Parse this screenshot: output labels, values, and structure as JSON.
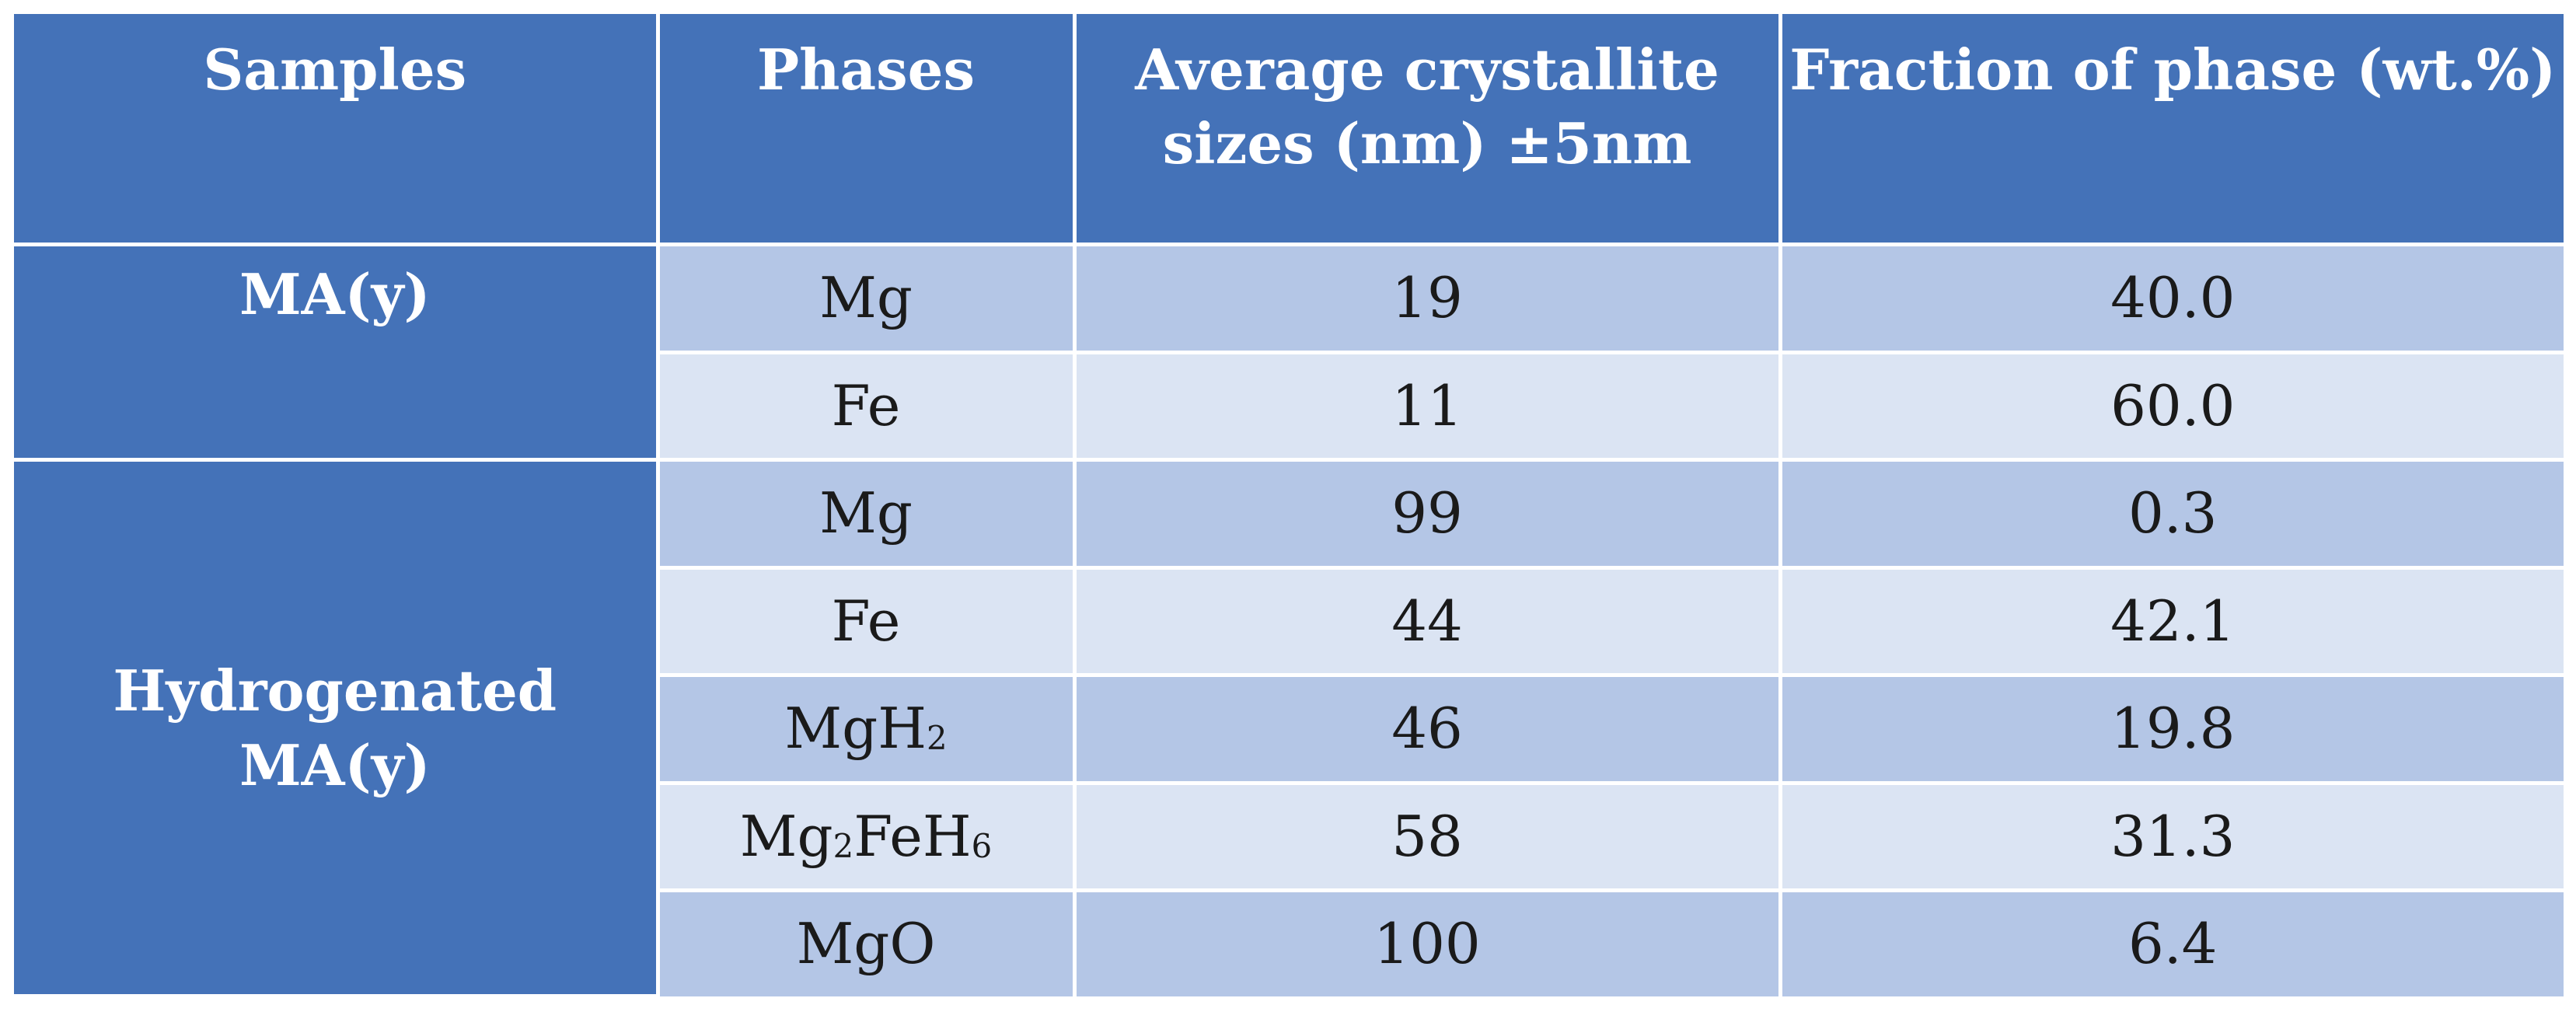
{
  "table": {
    "headers": {
      "samples": "Samples",
      "phases": "Phases",
      "size_line1": "Average crystallite",
      "size_line2": "sizes (nm) ±5nm",
      "fraction": "Fraction of phase (wt.%)"
    },
    "groups": [
      {
        "label": "MA(y)",
        "rows": [
          {
            "phase": "Mg",
            "size": "19",
            "fraction": "40.0"
          },
          {
            "phase": "Fe",
            "size": "11",
            "fraction": "60.0"
          }
        ]
      },
      {
        "label_line1": "Hydrogenated",
        "label_line2": "MA(y)",
        "rows": [
          {
            "phase": "Mg",
            "size": "99",
            "fraction": "0.3"
          },
          {
            "phase": "Fe",
            "size": "44",
            "fraction": "42.1"
          },
          {
            "phase": {
              "base": "MgH",
              "sub": "2"
            },
            "size": "46",
            "fraction": "19.8"
          },
          {
            "phase": {
              "p1": "Mg",
              "s1": "2",
              "p2": "FeH",
              "s2": "6"
            },
            "size": "58",
            "fraction": "31.3"
          },
          {
            "phase": "MgO",
            "size": "100",
            "fraction": "6.4"
          }
        ]
      }
    ]
  }
}
